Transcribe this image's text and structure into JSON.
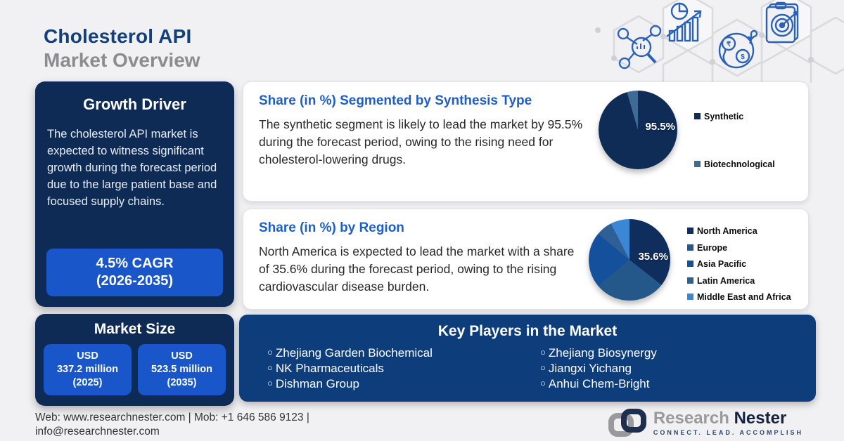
{
  "page": {
    "title_line1": "Cholesterol API",
    "title_line2": "Market Overview"
  },
  "colors": {
    "background": "#f1f1f3",
    "panel_navy": "#0e2b55",
    "button_blue": "#1956c9",
    "players_panel_blue": "#0e3d7c",
    "heading_blue": "#1e5ec9",
    "title_navy": "#11407c",
    "title_grey": "#8c8c90"
  },
  "decor_icons": [
    "market-research-icon",
    "growth-chart-icon",
    "global-market-icon",
    "target-clipboard-icon"
  ],
  "growth_driver": {
    "title": "Growth Driver",
    "body": "The cholesterol API market is expected to witness significant growth during the forecast period due to the large patient base and focused supply chains.",
    "cagr_line1": "4.5% CAGR",
    "cagr_line2": "(2026-2035)"
  },
  "market_size": {
    "title": "Market Size",
    "values": [
      {
        "line1": "USD",
        "line2": "337.2 million",
        "line3": "(2025)"
      },
      {
        "line1": "USD",
        "line2": "523.5 million",
        "line3": "(2035)"
      }
    ]
  },
  "synthesis_card": {
    "title": "Share (in %) Segmented by Synthesis Type",
    "body": "The synthetic segment is likely to lead the market by 95.5% during the forecast period, owing to the rising need for cholesterol-lowering drugs."
  },
  "region_card": {
    "title": "Share (in %) by Region",
    "body": "North America is expected to lead the market with a share of 35.6% during the forecast period, owing to the rising cardiovascular disease burden."
  },
  "key_players": {
    "title": "Key Players in the Market",
    "columns": [
      [
        "Zhejiang Garden Biochemical",
        "NK Pharmaceuticals",
        "Dishman Group"
      ],
      [
        "Zhejiang Biosynergy",
        "Jiangxi Yichang",
        "Anhui Chem-Bright"
      ]
    ]
  },
  "footer": {
    "contact_line1": "Web: www.researchnester.com | Mob: +1 646 586 9123 |",
    "contact_line2": "info@researchnester.com",
    "logo_word1": "Research",
    "logo_word2": "Nester",
    "logo_tagline": "CONNECT. LEAD. ACCOMPLISH"
  },
  "chart_data": [
    {
      "type": "pie",
      "title": "Share (in %) Segmented by Synthesis Type",
      "labels": [
        "Synthetic",
        "Biotechnological"
      ],
      "values": [
        95.5,
        4.5
      ],
      "colors": [
        "#0f2c57",
        "#3f6a96"
      ],
      "center_label": "95.5%",
      "legend_position": "right"
    },
    {
      "type": "pie",
      "title": "Share (in %) by Region",
      "labels": [
        "North America",
        "Europe",
        "Asia Pacific",
        "Latin America",
        "Middle East and Africa"
      ],
      "values": [
        35.6,
        28.4,
        22.0,
        6.5,
        7.5
      ],
      "colors": [
        "#0f2e5e",
        "#24578a",
        "#14509c",
        "#2e6095",
        "#3c86d6"
      ],
      "center_label": "35.6%",
      "legend_position": "right"
    }
  ]
}
